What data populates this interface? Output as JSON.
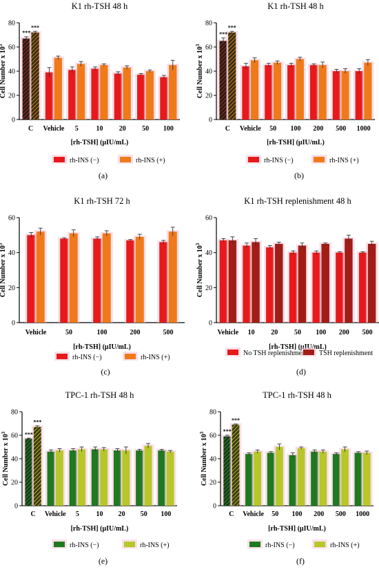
{
  "colors": {
    "red": "#e8191b",
    "orange": "#f07a1a",
    "dark_red": "#a21d17",
    "green": "#1f7a1f",
    "dark_green": "#235c1f",
    "yellow_green": "#b7c72a",
    "pink_halo": "#f4c6d6",
    "axis": "#000000"
  },
  "chart_data": [
    {
      "id": "a",
      "type": "bar",
      "title": "K1 rh-TSH 48 h",
      "panel_label": "(a)",
      "xlabel": "[rh-TSH] (µIU/mL)",
      "ylabel": "Cell Number x 10",
      "ylabel_sup": "3",
      "ylim": [
        0,
        80
      ],
      "yticks": [
        0,
        20,
        40,
        60,
        80
      ],
      "categories": [
        "C",
        "Vehicle",
        "5",
        "10",
        "20",
        "50",
        "100"
      ],
      "series": [
        {
          "name": "rh-INS (−)",
          "color": "red",
          "values": [
            67,
            39,
            41,
            42,
            38,
            37,
            35
          ],
          "errors": [
            1.5,
            4,
            2.5,
            1.5,
            1.5,
            1,
            1.5
          ],
          "control_color": "dark_red"
        },
        {
          "name": "rh-INS (+)",
          "color": "orange",
          "values": [
            72,
            51,
            46,
            45,
            43,
            40,
            45
          ],
          "errors": [
            1,
            1.5,
            2,
            1,
            1.5,
            1,
            4
          ],
          "control_color": "orange"
        }
      ],
      "annotations": [
        {
          "category": "C",
          "series": 0,
          "text": "***"
        },
        {
          "category": "C",
          "series": 1,
          "text": "***"
        }
      ]
    },
    {
      "id": "b",
      "type": "bar",
      "title": "K1 rh-TSH 48 h",
      "panel_label": "(b)",
      "xlabel": "[rh-TSH] (µIU/mL)",
      "ylabel": "Cell Number x 10",
      "ylabel_sup": "3",
      "ylim": [
        0,
        80
      ],
      "yticks": [
        0,
        20,
        40,
        60,
        80
      ],
      "categories": [
        "C",
        "Vehicle",
        "50",
        "100",
        "200",
        "500",
        "1000"
      ],
      "series": [
        {
          "name": "rh-INS (−)",
          "color": "red",
          "values": [
            65,
            44,
            45,
            45,
            45,
            40,
            40
          ],
          "errors": [
            2.5,
            2.5,
            1.5,
            1.5,
            1,
            1.5,
            2
          ],
          "control_color": "dark_red"
        },
        {
          "name": "rh-INS (+)",
          "color": "orange",
          "values": [
            72,
            49,
            47,
            50,
            45,
            40,
            47
          ],
          "errors": [
            1,
            2,
            1.5,
            1.5,
            2.5,
            2,
            2.5
          ],
          "control_color": "orange"
        }
      ],
      "annotations": [
        {
          "category": "C",
          "series": 0,
          "text": "***"
        },
        {
          "category": "C",
          "series": 1,
          "text": "***"
        }
      ]
    },
    {
      "id": "c",
      "type": "bar",
      "title": "K1 rh-TSH 72 h",
      "panel_label": "(c)",
      "xlabel": "[rh-TSH] (µIU/mL)",
      "ylabel": "Cell Number x 10",
      "ylabel_sup": "3",
      "ylim": [
        0,
        60
      ],
      "yticks": [
        0,
        20,
        40,
        60
      ],
      "categories": [
        "Vehicle",
        "50",
        "100",
        "200",
        "500"
      ],
      "series": [
        {
          "name": "rh-INS (−)",
          "color": "red",
          "values": [
            50,
            48,
            48,
            47,
            46
          ],
          "errors": [
            1.5,
            0.5,
            1,
            0.5,
            1
          ],
          "control_color": "red"
        },
        {
          "name": "rh-INS (+)",
          "color": "orange",
          "values": [
            52,
            51,
            51,
            49,
            52
          ],
          "errors": [
            2,
            2,
            1.5,
            1.5,
            2.5
          ],
          "control_color": "orange"
        }
      ],
      "annotations": []
    },
    {
      "id": "d",
      "type": "bar",
      "title": "K1 rh-TSH replenishment 48 h",
      "panel_label": "(d)",
      "xlabel": "[rh-TSH] (µIU/mL)",
      "ylabel": "Cell Number x 10",
      "ylabel_sup": "3",
      "ylim": [
        0,
        60
      ],
      "yticks": [
        0,
        20,
        40,
        60
      ],
      "categories": [
        "Vehicle",
        "10",
        "20",
        "50",
        "100",
        "200",
        "500"
      ],
      "series": [
        {
          "name": "No TSH replenishment",
          "color": "red",
          "values": [
            47,
            44,
            43,
            40,
            40,
            40,
            40
          ],
          "errors": [
            1,
            1.5,
            1,
            1,
            1,
            0.5,
            0.5
          ],
          "control_color": "red"
        },
        {
          "name": "TSH replenishment",
          "color": "dark_red",
          "values": [
            47,
            46,
            45,
            44,
            45,
            48,
            45
          ],
          "errors": [
            2,
            2,
            1,
            1.5,
            0.5,
            2,
            1.5
          ],
          "control_color": "dark_red"
        }
      ],
      "annotations": []
    },
    {
      "id": "e",
      "type": "bar",
      "title": "TPC-1 rh-TSH 48 h",
      "panel_label": "(e)",
      "xlabel": "[rh-TSH] (µIU/mL)",
      "ylabel": "Cell Number x 10",
      "ylabel_sup": "3",
      "ylim": [
        0,
        80
      ],
      "yticks": [
        0,
        20,
        40,
        60,
        80
      ],
      "categories": [
        "C",
        "Vehicle",
        "5",
        "10",
        "20",
        "50",
        "100"
      ],
      "series": [
        {
          "name": "rh-INS (−)",
          "color": "green",
          "values": [
            57,
            46,
            47,
            48,
            47,
            47,
            47
          ],
          "errors": [
            0.5,
            1.5,
            1.5,
            2,
            1.5,
            1,
            1
          ],
          "control_color": "dark_green"
        },
        {
          "name": "rh-INS (+)",
          "color": "yellow_green",
          "values": [
            67,
            47,
            48,
            48,
            47,
            51,
            46
          ],
          "errors": [
            1,
            1.5,
            2,
            1.5,
            3,
            2,
            1
          ],
          "control_color": "yellow_green"
        }
      ],
      "annotations": [
        {
          "category": "C",
          "series": 0,
          "text": "***"
        },
        {
          "category": "C",
          "series": 1,
          "text": "***"
        }
      ]
    },
    {
      "id": "f",
      "type": "bar",
      "title": "TPC-1 rh-TSH 48 h",
      "panel_label": "(f)",
      "xlabel": "[rh-TSH] (µIU/mL)",
      "ylabel": "Cell Number x 10",
      "ylabel_sup": "3",
      "ylim": [
        0,
        80
      ],
      "yticks": [
        0,
        20,
        40,
        60,
        80
      ],
      "categories": [
        "C",
        "Vehicle",
        "50",
        "100",
        "200",
        "500",
        "1000"
      ],
      "series": [
        {
          "name": "rh-INS (−)",
          "color": "green",
          "values": [
            59,
            44,
            45,
            43,
            46,
            44,
            45
          ],
          "errors": [
            1,
            1,
            1,
            2,
            1.5,
            1,
            1
          ],
          "control_color": "dark_green"
        },
        {
          "name": "rh-INS (+)",
          "color": "yellow_green",
          "values": [
            69,
            46,
            50,
            49,
            46,
            48,
            45
          ],
          "errors": [
            0.5,
            1.5,
            2.5,
            1,
            1.5,
            2,
            1.5
          ],
          "control_color": "yellow_green"
        }
      ],
      "annotations": [
        {
          "category": "C",
          "series": 0,
          "text": "***"
        },
        {
          "category": "C",
          "series": 1,
          "text": "***"
        }
      ]
    }
  ]
}
